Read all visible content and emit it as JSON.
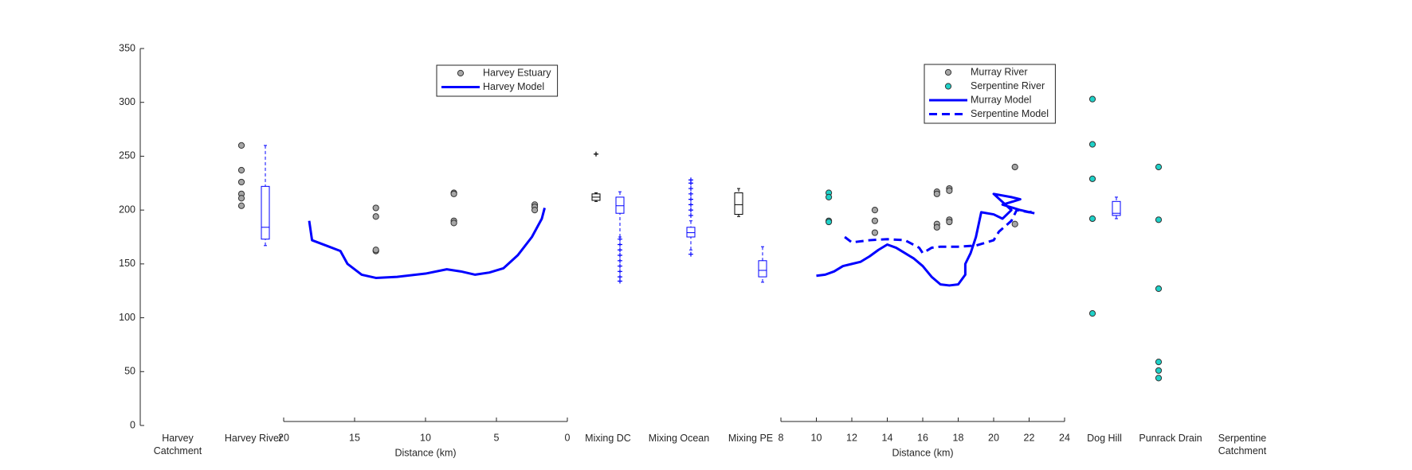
{
  "chart_data": [
    {
      "type": "box",
      "ylim": [
        0,
        350
      ],
      "yticks": [
        0,
        50,
        100,
        150,
        200,
        250,
        300,
        350
      ],
      "categories": [
        "Harvey Catchment",
        "Harvey River"
      ],
      "points": [
        {
          "category": 1,
          "color": "#a6a6a6",
          "values": [
            260,
            237,
            226,
            215,
            211,
            204
          ]
        }
      ],
      "boxes": [
        {
          "category": 1,
          "color": "#0000ff",
          "whisker_low": 167,
          "q1": 173,
          "median": 184,
          "q3": 222,
          "whisker_high": 260
        }
      ]
    },
    {
      "type": "line",
      "xlabel": "Distance (km)",
      "xlim": [
        20,
        0
      ],
      "xticks": [
        20,
        15,
        10,
        5,
        0
      ],
      "legend": "top",
      "series": [
        {
          "name": "Harvey Estuary",
          "kind": "scatter",
          "color": "#a6a6a6",
          "x": [
            13.5,
            13.5,
            13.5,
            13.5,
            8,
            8,
            8,
            8,
            2.3,
            2.3,
            2.3
          ],
          "values": [
            202,
            194,
            162,
            163,
            216,
            215,
            190,
            188,
            205,
            203,
            200
          ]
        },
        {
          "name": "Harvey Model",
          "kind": "line",
          "color": "#0000ff",
          "style": "solid",
          "x": [
            18.2,
            18,
            17,
            16,
            15.5,
            14.5,
            13.5,
            12,
            10,
            8.5,
            7.5,
            6.5,
            5.5,
            4.5,
            3.5,
            2.5,
            1.8,
            1.6
          ],
          "values": [
            190,
            172,
            167,
            162,
            150,
            140,
            137,
            138,
            141,
            145,
            143,
            140,
            142,
            146,
            158,
            175,
            192,
            202
          ]
        }
      ]
    },
    {
      "type": "box",
      "categories": [
        "Mixing DC",
        "Mixing Ocean",
        "Mixing PE"
      ],
      "boxes": [
        {
          "category": 0,
          "color": "#000000",
          "whisker_low": 208,
          "q1": 209,
          "median": 212,
          "q3": 215,
          "whisker_high": 216,
          "outliers": [
            252
          ]
        },
        {
          "category": 0,
          "color": "#0000ff",
          "whisker_low": 175,
          "q1": 197,
          "median": 204,
          "q3": 212,
          "whisker_high": 217,
          "outliers": [
            173,
            168,
            163,
            158,
            153,
            148,
            143,
            138,
            134
          ]
        },
        {
          "category": 1,
          "color": "#0000ff",
          "whisker_low": 163,
          "q1": 175,
          "median": 179,
          "q3": 184,
          "whisker_high": 190,
          "outliers": [
            195,
            200,
            205,
            210,
            215,
            220,
            225,
            228,
            159
          ]
        },
        {
          "category": 2,
          "color": "#000000",
          "whisker_low": 194,
          "q1": 196,
          "median": 205,
          "q3": 216,
          "whisker_high": 220
        },
        {
          "category": 2,
          "color": "#0000ff",
          "whisker_low": 133,
          "q1": 138,
          "median": 144,
          "q3": 153,
          "whisker_high": 166
        }
      ]
    },
    {
      "type": "line",
      "xlabel": "Distance (km)",
      "xlim": [
        8,
        24
      ],
      "xticks": [
        8,
        10,
        12,
        14,
        16,
        18,
        20,
        22,
        24
      ],
      "legend": "top-right",
      "series": [
        {
          "name": "Murray River",
          "kind": "scatter",
          "color": "#a6a6a6",
          "x": [
            13.3,
            13.3,
            13.3,
            16.8,
            16.8,
            16.8,
            16.8,
            17.5,
            17.5,
            17.5,
            17.5,
            21.2,
            21.2
          ],
          "values": [
            200,
            190,
            179,
            217,
            215,
            187,
            184,
            220,
            218,
            191,
            189,
            240,
            187
          ]
        },
        {
          "name": "Serpentine River",
          "kind": "scatter",
          "color": "#1fd1c8",
          "x": [
            10.7,
            10.7,
            10.7,
            10.7
          ],
          "values": [
            216,
            212,
            190,
            189
          ]
        },
        {
          "name": "Murray Model",
          "kind": "line",
          "color": "#0000ff",
          "style": "solid",
          "x": [
            10,
            10.5,
            11,
            11.5,
            12,
            12.5,
            13,
            13.5,
            14,
            14.5,
            15,
            15.5,
            16,
            16.5,
            17,
            17.5,
            18,
            18.4,
            18.4,
            18.7,
            19,
            19.3,
            20,
            20.5,
            21,
            20,
            21,
            21.5,
            20.5,
            21.5,
            22.3
          ],
          "values": [
            139,
            140,
            143,
            148,
            150,
            152,
            157,
            163,
            168,
            165,
            160,
            155,
            148,
            138,
            131,
            130,
            131,
            140,
            150,
            160,
            175,
            198,
            196,
            192,
            200,
            215,
            212,
            210,
            205,
            200,
            197
          ]
        },
        {
          "name": "Serpentine Model",
          "kind": "line",
          "color": "#0000ff",
          "style": "dashed",
          "x": [
            11.6,
            12,
            13,
            14,
            15,
            15.8,
            16,
            16.5,
            17,
            18,
            19,
            20,
            20.3,
            21,
            21.3,
            22,
            22.3
          ],
          "values": [
            175,
            170,
            172,
            173,
            172,
            165,
            160,
            165,
            166,
            166,
            167,
            172,
            180,
            190,
            200,
            198,
            199
          ]
        }
      ]
    },
    {
      "type": "box",
      "categories": [
        "Dog Hill",
        "Punrack Drain",
        "Serpentine Catchment"
      ],
      "points": [
        {
          "category": 0,
          "color": "#1fd1c8",
          "values": [
            303,
            261,
            229,
            192,
            104
          ]
        },
        {
          "category": 1,
          "color": "#1fd1c8",
          "values": [
            240,
            191,
            127,
            59,
            51,
            44
          ]
        }
      ],
      "boxes": [
        {
          "category": 0,
          "color": "#0000ff",
          "whisker_low": 192,
          "q1": 195,
          "median": 197,
          "q3": 208,
          "whisker_high": 212
        }
      ]
    }
  ]
}
